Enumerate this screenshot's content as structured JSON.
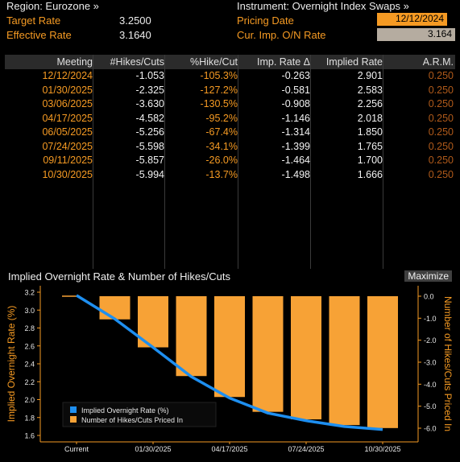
{
  "header": {
    "region_label": "Region: Eurozone »",
    "target_rate_label": "Target Rate",
    "target_rate_value": "3.2500",
    "effective_rate_label": "Effective Rate",
    "effective_rate_value": "3.1640",
    "instrument_label": "Instrument: Overnight Index Swaps »",
    "pricing_date_label": "Pricing Date",
    "pricing_date_value": "12/12/2024",
    "cur_imp_label": "Cur. Imp. O/N Rate",
    "cur_imp_value": "3.164"
  },
  "table": {
    "columns": [
      "Meeting",
      "#Hikes/Cuts",
      "%Hike/Cut",
      "Imp. Rate Δ",
      "Implied Rate",
      "A.R.M."
    ],
    "rows": [
      {
        "meeting": "12/12/2024",
        "hikes": "-1.053",
        "pct": "-105.3%",
        "delta": "-0.263",
        "implied": "2.901",
        "arm": "0.250"
      },
      {
        "meeting": "01/30/2025",
        "hikes": "-2.325",
        "pct": "-127.2%",
        "delta": "-0.581",
        "implied": "2.583",
        "arm": "0.250"
      },
      {
        "meeting": "03/06/2025",
        "hikes": "-3.630",
        "pct": "-130.5%",
        "delta": "-0.908",
        "implied": "2.256",
        "arm": "0.250"
      },
      {
        "meeting": "04/17/2025",
        "hikes": "-4.582",
        "pct": "-95.2%",
        "delta": "-1.146",
        "implied": "2.018",
        "arm": "0.250"
      },
      {
        "meeting": "06/05/2025",
        "hikes": "-5.256",
        "pct": "-67.4%",
        "delta": "-1.314",
        "implied": "1.850",
        "arm": "0.250"
      },
      {
        "meeting": "07/24/2025",
        "hikes": "-5.598",
        "pct": "-34.1%",
        "delta": "-1.399",
        "implied": "1.765",
        "arm": "0.250"
      },
      {
        "meeting": "09/11/2025",
        "hikes": "-5.857",
        "pct": "-26.0%",
        "delta": "-1.464",
        "implied": "1.700",
        "arm": "0.250"
      },
      {
        "meeting": "10/30/2025",
        "hikes": "-5.994",
        "pct": "-13.7%",
        "delta": "-1.498",
        "implied": "1.666",
        "arm": "0.250"
      }
    ]
  },
  "chart_panel": {
    "title": "Implied Overnight Rate & Number of Hikes/Cuts",
    "maximize_label": "Maximize"
  },
  "chart_data": {
    "type": "bar",
    "categories": [
      "Current",
      "12/12/2024",
      "01/30/2025",
      "03/06/2025",
      "04/17/2025",
      "06/05/2025",
      "07/24/2025",
      "09/11/2025",
      "10/30/2025"
    ],
    "x_tick_labels": [
      "Current",
      "01/30/2025",
      "04/17/2025",
      "07/24/2025",
      "10/30/2025"
    ],
    "series": [
      {
        "name": "Implied Overnight Rate (%)",
        "type": "line",
        "axis": "left",
        "values": [
          3.164,
          2.901,
          2.583,
          2.256,
          2.018,
          1.85,
          1.765,
          1.7,
          1.666
        ]
      },
      {
        "name": "Number of Hikes/Cuts Priced In",
        "type": "bar",
        "axis": "right",
        "values": [
          0,
          -1.053,
          -2.325,
          -3.63,
          -4.582,
          -5.256,
          -5.598,
          -5.857,
          -5.994
        ]
      }
    ],
    "ylabel": "Implied Overnight Rate (%)",
    "y2label": "Number of Hikes/Cuts Priced In",
    "ylim": [
      1.6,
      3.2
    ],
    "y_ticks": [
      "3.2",
      "3.0",
      "2.8",
      "2.6",
      "2.4",
      "2.2",
      "2.0",
      "1.8",
      "1.6"
    ],
    "y2lim": [
      -6.0,
      0.0
    ],
    "y2_ticks": [
      "0.0",
      "-1.0",
      "-2.0",
      "-3.0",
      "-4.0",
      "-5.0",
      "-6.0"
    ],
    "legend_position": "bottom-left",
    "colors": {
      "line": "#1e8ff0",
      "bar": "#f7a236",
      "axis_text": "#f59a23"
    }
  }
}
